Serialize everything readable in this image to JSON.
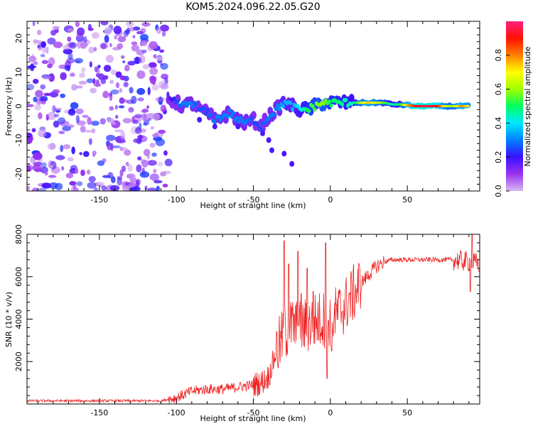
{
  "figure": {
    "title": "KOM5.2024.096.22.05.G20"
  },
  "chart_data": [
    {
      "type": "heatmap",
      "xlabel": "Height of straight line (km)",
      "ylabel": "Frequency (Hz)",
      "xlim": [
        -197,
        97
      ],
      "ylim": [
        -25,
        25
      ],
      "x_ticks": [
        -150,
        -100,
        -50,
        0,
        50
      ],
      "y_ticks": [
        -20,
        -10,
        0,
        10,
        20
      ],
      "colorbar": {
        "label": "Normalized spectral amplitude",
        "range": [
          0,
          1
        ],
        "ticks": [
          0.0,
          0.2,
          0.4,
          0.6,
          0.8
        ],
        "colors": [
          "#d8b8f2",
          "#9b33f0",
          "#3a10ff",
          "#0080ff",
          "#00e8ff",
          "#00ff60",
          "#a0ff00",
          "#ffff00",
          "#ff8000",
          "#ff1000",
          "#ff2080"
        ]
      },
      "ridge": [
        {
          "x": -105,
          "y": 2,
          "v": 0.15
        },
        {
          "x": -100,
          "y": 1,
          "v": 0.25
        },
        {
          "x": -95,
          "y": 0,
          "v": 0.3
        },
        {
          "x": -90,
          "y": 1,
          "v": 0.3
        },
        {
          "x": -85,
          "y": -1,
          "v": 0.25
        },
        {
          "x": -80,
          "y": -2,
          "v": 0.25
        },
        {
          "x": -75,
          "y": -4,
          "v": 0.3
        },
        {
          "x": -70,
          "y": -3,
          "v": 0.3
        },
        {
          "x": -65,
          "y": -2,
          "v": 0.3
        },
        {
          "x": -60,
          "y": -4,
          "v": 0.3
        },
        {
          "x": -55,
          "y": -5,
          "v": 0.3
        },
        {
          "x": -50,
          "y": -4,
          "v": 0.25
        },
        {
          "x": -45,
          "y": -6,
          "v": 0.25
        },
        {
          "x": -40,
          "y": -3,
          "v": 0.3
        },
        {
          "x": -35,
          "y": -1,
          "v": 0.3
        },
        {
          "x": -30,
          "y": 1,
          "v": 0.35
        },
        {
          "x": -25,
          "y": 0,
          "v": 0.35
        },
        {
          "x": -20,
          "y": -1,
          "v": 0.4
        },
        {
          "x": -15,
          "y": -1,
          "v": 0.5
        },
        {
          "x": -10,
          "y": 0,
          "v": 0.55
        },
        {
          "x": -5,
          "y": 1,
          "v": 0.6
        },
        {
          "x": 0,
          "y": 1,
          "v": 0.5
        },
        {
          "x": 5,
          "y": 1,
          "v": 0.5
        },
        {
          "x": 10,
          "y": 1,
          "v": 0.45
        },
        {
          "x": 15,
          "y": 1,
          "v": 0.45
        },
        {
          "x": 20,
          "y": 1,
          "v": 0.65
        },
        {
          "x": 25,
          "y": 1,
          "v": 0.75
        },
        {
          "x": 30,
          "y": 1,
          "v": 0.65
        },
        {
          "x": 35,
          "y": 1,
          "v": 0.55
        },
        {
          "x": 40,
          "y": 0.5,
          "v": 0.45
        },
        {
          "x": 45,
          "y": 0.5,
          "v": 0.5
        },
        {
          "x": 50,
          "y": 0.3,
          "v": 0.75
        },
        {
          "x": 55,
          "y": 0,
          "v": 0.9
        },
        {
          "x": 60,
          "y": 0,
          "v": 0.95
        },
        {
          "x": 65,
          "y": 0,
          "v": 0.95
        },
        {
          "x": 70,
          "y": 0,
          "v": 0.9
        },
        {
          "x": 75,
          "y": 0,
          "v": 0.65
        },
        {
          "x": 80,
          "y": 0,
          "v": 0.6
        },
        {
          "x": 85,
          "y": 0,
          "v": 0.8
        },
        {
          "x": 90,
          "y": 0,
          "v": 0.7
        }
      ],
      "noise": {
        "x_range": [
          -197,
          -105
        ],
        "y_range": [
          -25,
          25
        ],
        "v_max": 0.25
      }
    },
    {
      "type": "line",
      "xlabel": "Height of straight line (km)",
      "ylabel": "SNR (10 * v/v)",
      "xlim": [
        -197,
        97
      ],
      "ylim": [
        0,
        8000
      ],
      "x_ticks": [
        -150,
        -100,
        -50,
        0,
        50
      ],
      "y_ticks": [
        2000,
        4000,
        6000,
        8000
      ],
      "color": "#ee2020",
      "envelope": {
        "x": [
          -197,
          -110,
          -100,
          -90,
          -80,
          -70,
          -60,
          -50,
          -45,
          -40,
          -35,
          -30,
          -25,
          -20,
          -15,
          -10,
          -5,
          0,
          5,
          10,
          15,
          20,
          25,
          30,
          35,
          40,
          50,
          60,
          70,
          80,
          90,
          97
        ],
        "y": [
          150,
          150,
          300,
          600,
          700,
          700,
          800,
          900,
          1000,
          1300,
          2500,
          3300,
          3700,
          3500,
          3700,
          3900,
          4000,
          4000,
          4300,
          4700,
          5200,
          5700,
          6100,
          6500,
          6700,
          6800,
          6800,
          6800,
          6800,
          6800,
          6700,
          6600
        ]
      },
      "spikes": [
        {
          "x": -30,
          "y": 7700
        },
        {
          "x": -27,
          "y": 6600
        },
        {
          "x": -21,
          "y": 7200
        },
        {
          "x": -19,
          "y": 5200
        },
        {
          "x": -15,
          "y": 6400
        },
        {
          "x": -11,
          "y": 5300
        },
        {
          "x": -3,
          "y": 7600
        },
        {
          "x": -2,
          "y": 1200
        },
        {
          "x": 1,
          "y": 2500
        },
        {
          "x": 92,
          "y": 8000
        },
        {
          "x": 91,
          "y": 5300
        }
      ]
    }
  ]
}
